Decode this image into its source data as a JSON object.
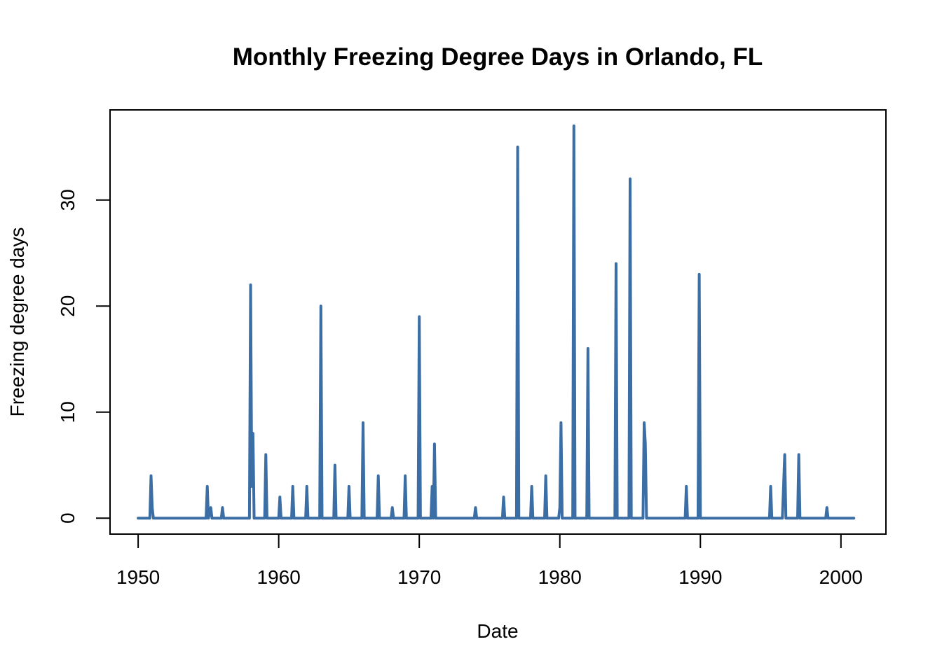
{
  "chart_data": {
    "type": "line",
    "title": "Monthly Freezing Degree Days in Orlando, FL",
    "xlabel": "Date",
    "ylabel": "Freezing degree days",
    "xlim": [
      1948.0,
      2003.2
    ],
    "ylim": [
      -1.5,
      38.5
    ],
    "x_ticks": [
      1950,
      1960,
      1970,
      1980,
      1990,
      2000
    ],
    "y_ticks": [
      0,
      10,
      20,
      30
    ],
    "line_color": "#3b6ea5",
    "grid": false,
    "legend": "none",
    "series": [
      {
        "x": [
          1950.0,
          1950.833,
          1950.917,
          1951.0,
          1951.083,
          1954.833,
          1954.917,
          1955.0,
          1955.167,
          1955.25,
          1955.333,
          1955.917,
          1956.0,
          1956.083,
          1957.917,
          1958.0,
          1958.083,
          1958.167,
          1958.25,
          1958.333,
          1959.0,
          1959.083,
          1959.167,
          1960.0,
          1960.083,
          1960.167,
          1960.917,
          1961.0,
          1961.083,
          1961.917,
          1962.0,
          1962.083,
          1962.917,
          1963.0,
          1963.083,
          1963.917,
          1964.0,
          1964.083,
          1964.917,
          1965.0,
          1965.083,
          1965.917,
          1966.0,
          1966.083,
          1967.0,
          1967.083,
          1967.167,
          1968.0,
          1968.083,
          1968.167,
          1968.917,
          1969.0,
          1969.083,
          1969.917,
          1970.0,
          1970.083,
          1970.833,
          1970.917,
          1971.0,
          1971.083,
          1971.167,
          1973.917,
          1974.0,
          1974.083,
          1975.917,
          1976.0,
          1976.083,
          1976.917,
          1977.0,
          1977.083,
          1977.917,
          1978.0,
          1978.083,
          1978.917,
          1979.0,
          1979.083,
          1979.917,
          1980.0,
          1980.083,
          1980.167,
          1980.917,
          1981.0,
          1981.083,
          1981.917,
          1982.0,
          1982.083,
          1983.917,
          1984.0,
          1984.083,
          1984.917,
          1985.0,
          1985.083,
          1985.917,
          1986.0,
          1986.083,
          1986.167,
          1988.917,
          1989.0,
          1989.083,
          1989.833,
          1989.917,
          1990.0,
          1994.917,
          1995.0,
          1995.083,
          1995.833,
          1995.917,
          1996.0,
          1996.083,
          1996.917,
          1997.0,
          1997.083,
          1998.917,
          1999.0,
          1999.083,
          2000.917
        ],
        "y": [
          0,
          0,
          4,
          1,
          0,
          0,
          3,
          0,
          1,
          0,
          0,
          0,
          1,
          0,
          0,
          22,
          3,
          8,
          0,
          0,
          0,
          6,
          0,
          0,
          2,
          0,
          0,
          3,
          0,
          0,
          3,
          0,
          0,
          20,
          0,
          0,
          5,
          0,
          0,
          3,
          0,
          0,
          9,
          0,
          0,
          4,
          0,
          0,
          1,
          0,
          0,
          4,
          0,
          0,
          19,
          0,
          0,
          3,
          0,
          7,
          0,
          0,
          1,
          0,
          0,
          2,
          0,
          0,
          35,
          0,
          0,
          3,
          0,
          0,
          4,
          0,
          0,
          1,
          9,
          0,
          0,
          37,
          0,
          0,
          16,
          0,
          0,
          24,
          0,
          0,
          32,
          0,
          0,
          9,
          7,
          0,
          0,
          3,
          0,
          0,
          23,
          0,
          0,
          3,
          0,
          0,
          3,
          6,
          0,
          0,
          6,
          0,
          0,
          1,
          0,
          0
        ]
      }
    ]
  }
}
